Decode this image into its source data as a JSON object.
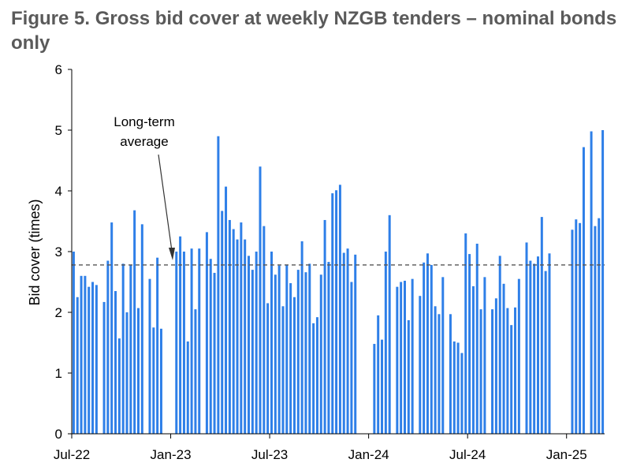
{
  "chart_data": {
    "type": "bar",
    "title": "Figure 5. Gross bid cover at weekly NZGB tenders – nominal bonds only",
    "xlabel": "",
    "ylabel": "Bid cover (times)",
    "ylim": [
      0,
      6
    ],
    "yticks": [
      "0",
      "1",
      "2",
      "3",
      "4",
      "5",
      "6"
    ],
    "xticks": [
      {
        "label": "Jul-22",
        "week": 0
      },
      {
        "label": "Jan-23",
        "week": 26
      },
      {
        "label": "Jul-23",
        "week": 52
      },
      {
        "label": "Jan-24",
        "week": 78
      },
      {
        "label": "Jul-24",
        "week": 104
      },
      {
        "label": "Jan-25",
        "week": 130
      }
    ],
    "long_term_average": 2.78,
    "annotation": [
      "Long-term",
      "average"
    ],
    "color": "#2E7FE8",
    "series": [
      {
        "name": "Gross bid cover",
        "values": [
          3.0,
          2.25,
          2.6,
          2.6,
          2.42,
          2.5,
          2.45,
          null,
          2.17,
          2.85,
          3.48,
          2.35,
          1.57,
          2.8,
          2.0,
          2.78,
          3.68,
          2.07,
          3.45,
          null,
          2.55,
          1.75,
          2.9,
          1.73,
          null,
          null,
          null,
          3.0,
          3.25,
          3.0,
          1.52,
          3.05,
          2.05,
          3.05,
          null,
          3.32,
          2.88,
          2.65,
          4.9,
          3.67,
          4.07,
          3.52,
          3.37,
          3.2,
          3.48,
          3.2,
          2.93,
          2.7,
          3.0,
          4.4,
          3.42,
          2.15,
          3.0,
          2.62,
          2.77,
          2.1,
          2.78,
          2.48,
          2.25,
          2.7,
          3.17,
          2.66,
          2.8,
          1.82,
          1.92,
          2.62,
          3.52,
          2.83,
          3.96,
          4.01,
          4.1,
          2.98,
          3.05,
          2.5,
          2.95,
          null,
          null,
          null,
          null,
          1.48,
          1.95,
          1.55,
          3.0,
          3.6,
          null,
          2.42,
          2.5,
          2.52,
          1.87,
          2.55,
          null,
          2.27,
          2.82,
          2.97,
          2.78,
          2.1,
          1.97,
          2.58,
          null,
          1.97,
          1.52,
          1.5,
          1.33,
          3.3,
          2.96,
          2.43,
          3.13,
          2.05,
          2.58,
          null,
          2.05,
          2.23,
          2.93,
          2.47,
          2.07,
          1.79,
          2.08,
          2.55,
          null,
          3.15,
          2.85,
          2.8,
          2.92,
          3.57,
          2.68,
          2.97,
          null,
          null,
          null,
          null,
          null,
          3.36,
          3.53,
          3.47,
          4.72,
          null,
          4.98,
          3.42,
          3.55,
          5.0
        ]
      }
    ]
  }
}
